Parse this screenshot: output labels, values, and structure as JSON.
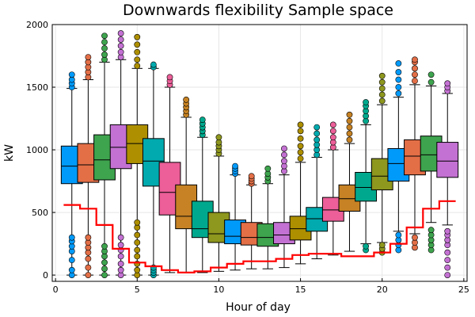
{
  "chart_data": {
    "type": "box",
    "title": "Downwards flexibility Sample space",
    "xlabel": "Hour of day",
    "ylabel": "kW",
    "xlim": [
      -0.2,
      25.2
    ],
    "ylim": [
      -50,
      2000
    ],
    "x_ticks": [
      0,
      5,
      10,
      15,
      20,
      25
    ],
    "y_ticks": [
      0,
      500,
      1000,
      1500,
      2000
    ],
    "grid": true,
    "legend": "none",
    "box_width": 1.3,
    "series_colors": [
      "#009afa",
      "#e36f47",
      "#3ea44e",
      "#c371d2",
      "#ad8f00",
      "#00aaae",
      "#ec5f99",
      "#c68224",
      "#00a98d",
      "#8e971e"
    ],
    "boxes": [
      {
        "hour": 1,
        "lower_whisker": 0,
        "q1": 730,
        "median": 870,
        "q3": 1030,
        "upper_whisker": 1490,
        "outliers_low": [
          0,
          40,
          120,
          190,
          230,
          270,
          300
        ],
        "outliers_high": [
          1500,
          1530,
          1560,
          1600
        ]
      },
      {
        "hour": 2,
        "lower_whisker": 0,
        "q1": 740,
        "median": 880,
        "q3": 1050,
        "upper_whisker": 1560,
        "outliers_low": [
          0,
          60,
          130,
          180,
          220,
          260,
          300
        ],
        "outliers_high": [
          1580,
          1620,
          1660,
          1700,
          1740
        ]
      },
      {
        "hour": 3,
        "lower_whisker": 0,
        "q1": 760,
        "median": 920,
        "q3": 1120,
        "upper_whisker": 1700,
        "outliers_low": [
          0,
          50,
          100,
          150,
          190,
          230
        ],
        "outliers_high": [
          1720,
          1760,
          1810,
          1860,
          1910
        ]
      },
      {
        "hour": 4,
        "lower_whisker": 0,
        "q1": 850,
        "median": 1020,
        "q3": 1200,
        "upper_whisker": 1720,
        "outliers_low": [
          0,
          40,
          90,
          150,
          200,
          240,
          300
        ],
        "outliers_high": [
          1740,
          1780,
          1830,
          1880,
          1930
        ]
      },
      {
        "hour": 5,
        "lower_whisker": 0,
        "q1": 890,
        "median": 1050,
        "q3": 1200,
        "upper_whisker": 1650,
        "outliers_low": [
          0,
          40,
          90,
          150,
          200,
          260,
          320,
          380,
          420
        ],
        "outliers_high": [
          1670,
          1720,
          1780,
          1840,
          1900
        ]
      },
      {
        "hour": 6,
        "lower_whisker": 0,
        "q1": 710,
        "median": 910,
        "q3": 1090,
        "upper_whisker": 1650,
        "outliers_low": [
          0,
          20,
          40,
          60
        ],
        "outliers_high": [
          1660,
          1680
        ]
      },
      {
        "hour": 7,
        "lower_whisker": 20,
        "q1": 480,
        "median": 660,
        "q3": 900,
        "upper_whisker": 1500,
        "outliers_low": [],
        "outliers_high": [
          1520,
          1550,
          1580
        ]
      },
      {
        "hour": 8,
        "lower_whisker": 20,
        "q1": 370,
        "median": 470,
        "q3": 720,
        "upper_whisker": 1260,
        "outliers_low": [],
        "outliers_high": [
          1280,
          1310,
          1340,
          1370,
          1400
        ]
      },
      {
        "hour": 9,
        "lower_whisker": 20,
        "q1": 300,
        "median": 370,
        "q3": 590,
        "upper_whisker": 1100,
        "outliers_low": [],
        "outliers_high": [
          1120,
          1150,
          1180,
          1210,
          1240
        ]
      },
      {
        "hour": 10,
        "lower_whisker": 30,
        "q1": 260,
        "median": 330,
        "q3": 500,
        "upper_whisker": 950,
        "outliers_low": [],
        "outliers_high": [
          970,
          1000,
          1030,
          1060,
          1100
        ]
      },
      {
        "hour": 11,
        "lower_whisker": 40,
        "q1": 250,
        "median": 310,
        "q3": 440,
        "upper_whisker": 800,
        "outliers_low": [],
        "outliers_high": [
          810,
          830,
          850,
          870
        ]
      },
      {
        "hour": 12,
        "lower_whisker": 50,
        "q1": 240,
        "median": 300,
        "q3": 420,
        "upper_whisker": 720,
        "outliers_low": [],
        "outliers_high": [
          730,
          750,
          770,
          790
        ]
      },
      {
        "hour": 13,
        "lower_whisker": 50,
        "q1": 230,
        "median": 300,
        "q3": 410,
        "upper_whisker": 730,
        "outliers_low": [],
        "outliers_high": [
          750,
          780,
          810,
          850
        ]
      },
      {
        "hour": 14,
        "lower_whisker": 60,
        "q1": 250,
        "median": 320,
        "q3": 420,
        "upper_whisker": 800,
        "outliers_low": [],
        "outliers_high": [
          830,
          870,
          910,
          960,
          1010
        ]
      },
      {
        "hour": 15,
        "lower_whisker": 90,
        "q1": 280,
        "median": 370,
        "q3": 470,
        "upper_whisker": 900,
        "outliers_low": [],
        "outliers_high": [
          930,
          980,
          1030,
          1090,
          1150,
          1200
        ]
      },
      {
        "hour": 16,
        "lower_whisker": 130,
        "q1": 350,
        "median": 450,
        "q3": 540,
        "upper_whisker": 940,
        "outliers_low": [],
        "outliers_high": [
          960,
          1000,
          1040,
          1080,
          1130,
          1180
        ]
      },
      {
        "hour": 17,
        "lower_whisker": 160,
        "q1": 430,
        "median": 520,
        "q3": 620,
        "upper_whisker": 1000,
        "outliers_low": [],
        "outliers_high": [
          1020,
          1060,
          1100,
          1150,
          1200
        ]
      },
      {
        "hour": 18,
        "lower_whisker": 190,
        "q1": 510,
        "median": 610,
        "q3": 720,
        "upper_whisker": 1050,
        "outliers_low": [],
        "outliers_high": [
          1080,
          1130,
          1180,
          1230,
          1280
        ]
      },
      {
        "hour": 19,
        "lower_whisker": 250,
        "q1": 590,
        "median": 700,
        "q3": 820,
        "upper_whisker": 1200,
        "outliers_low": [
          200,
          230
        ],
        "outliers_high": [
          1230,
          1270,
          1310,
          1350,
          1380
        ]
      },
      {
        "hour": 20,
        "lower_whisker": 260,
        "q1": 680,
        "median": 790,
        "q3": 930,
        "upper_whisker": 1360,
        "outliers_low": [
          180,
          210,
          240
        ],
        "outliers_high": [
          1390,
          1440,
          1490,
          1540,
          1590
        ]
      },
      {
        "hour": 21,
        "lower_whisker": 350,
        "q1": 750,
        "median": 890,
        "q3": 1010,
        "upper_whisker": 1420,
        "outliers_low": [
          200,
          240,
          280,
          320
        ],
        "outliers_high": [
          1450,
          1500,
          1560,
          1620,
          1690
        ]
      },
      {
        "hour": 22,
        "lower_whisker": 330,
        "q1": 800,
        "median": 950,
        "q3": 1080,
        "upper_whisker": 1520,
        "outliers_low": [
          220,
          260,
          300
        ],
        "outliers_high": [
          1550,
          1600,
          1650,
          1700,
          1720
        ]
      },
      {
        "hour": 23,
        "lower_whisker": 420,
        "q1": 830,
        "median": 960,
        "q3": 1110,
        "upper_whisker": 1510,
        "outliers_low": [
          200,
          240,
          280,
          320,
          360
        ],
        "outliers_high": [
          1540,
          1600
        ]
      },
      {
        "hour": 24,
        "lower_whisker": 400,
        "q1": 780,
        "median": 910,
        "q3": 1060,
        "upper_whisker": 1450,
        "outliers_low": [
          0,
          60,
          120,
          180,
          240,
          280,
          320,
          350
        ],
        "outliers_high": [
          1470,
          1500,
          1530
        ]
      }
    ],
    "step_series": {
      "color": "#ff0000",
      "points": [
        {
          "x": 0.5,
          "y": 560
        },
        {
          "x": 1.5,
          "y": 560
        },
        {
          "x": 1.5,
          "y": 530
        },
        {
          "x": 2.5,
          "y": 530
        },
        {
          "x": 2.5,
          "y": 400
        },
        {
          "x": 3.5,
          "y": 400
        },
        {
          "x": 3.5,
          "y": 210
        },
        {
          "x": 4.5,
          "y": 210
        },
        {
          "x": 4.5,
          "y": 100
        },
        {
          "x": 5.5,
          "y": 100
        },
        {
          "x": 5.5,
          "y": 70
        },
        {
          "x": 6.5,
          "y": 70
        },
        {
          "x": 6.5,
          "y": 40
        },
        {
          "x": 7.5,
          "y": 40
        },
        {
          "x": 7.5,
          "y": 20
        },
        {
          "x": 8.5,
          "y": 20
        },
        {
          "x": 8.5,
          "y": 30
        },
        {
          "x": 9.5,
          "y": 30
        },
        {
          "x": 9.5,
          "y": 60
        },
        {
          "x": 10.5,
          "y": 60
        },
        {
          "x": 10.5,
          "y": 90
        },
        {
          "x": 11.5,
          "y": 90
        },
        {
          "x": 11.5,
          "y": 110
        },
        {
          "x": 13.5,
          "y": 110
        },
        {
          "x": 13.5,
          "y": 130
        },
        {
          "x": 14.5,
          "y": 130
        },
        {
          "x": 14.5,
          "y": 160
        },
        {
          "x": 15.5,
          "y": 160
        },
        {
          "x": 15.5,
          "y": 170
        },
        {
          "x": 17.5,
          "y": 170
        },
        {
          "x": 17.5,
          "y": 150
        },
        {
          "x": 19.5,
          "y": 150
        },
        {
          "x": 19.5,
          "y": 180
        },
        {
          "x": 20.5,
          "y": 180
        },
        {
          "x": 20.5,
          "y": 250
        },
        {
          "x": 21.5,
          "y": 250
        },
        {
          "x": 21.5,
          "y": 380
        },
        {
          "x": 22.5,
          "y": 380
        },
        {
          "x": 22.5,
          "y": 530
        },
        {
          "x": 23.5,
          "y": 530
        },
        {
          "x": 23.5,
          "y": 590
        },
        {
          "x": 24.5,
          "y": 590
        }
      ]
    }
  }
}
